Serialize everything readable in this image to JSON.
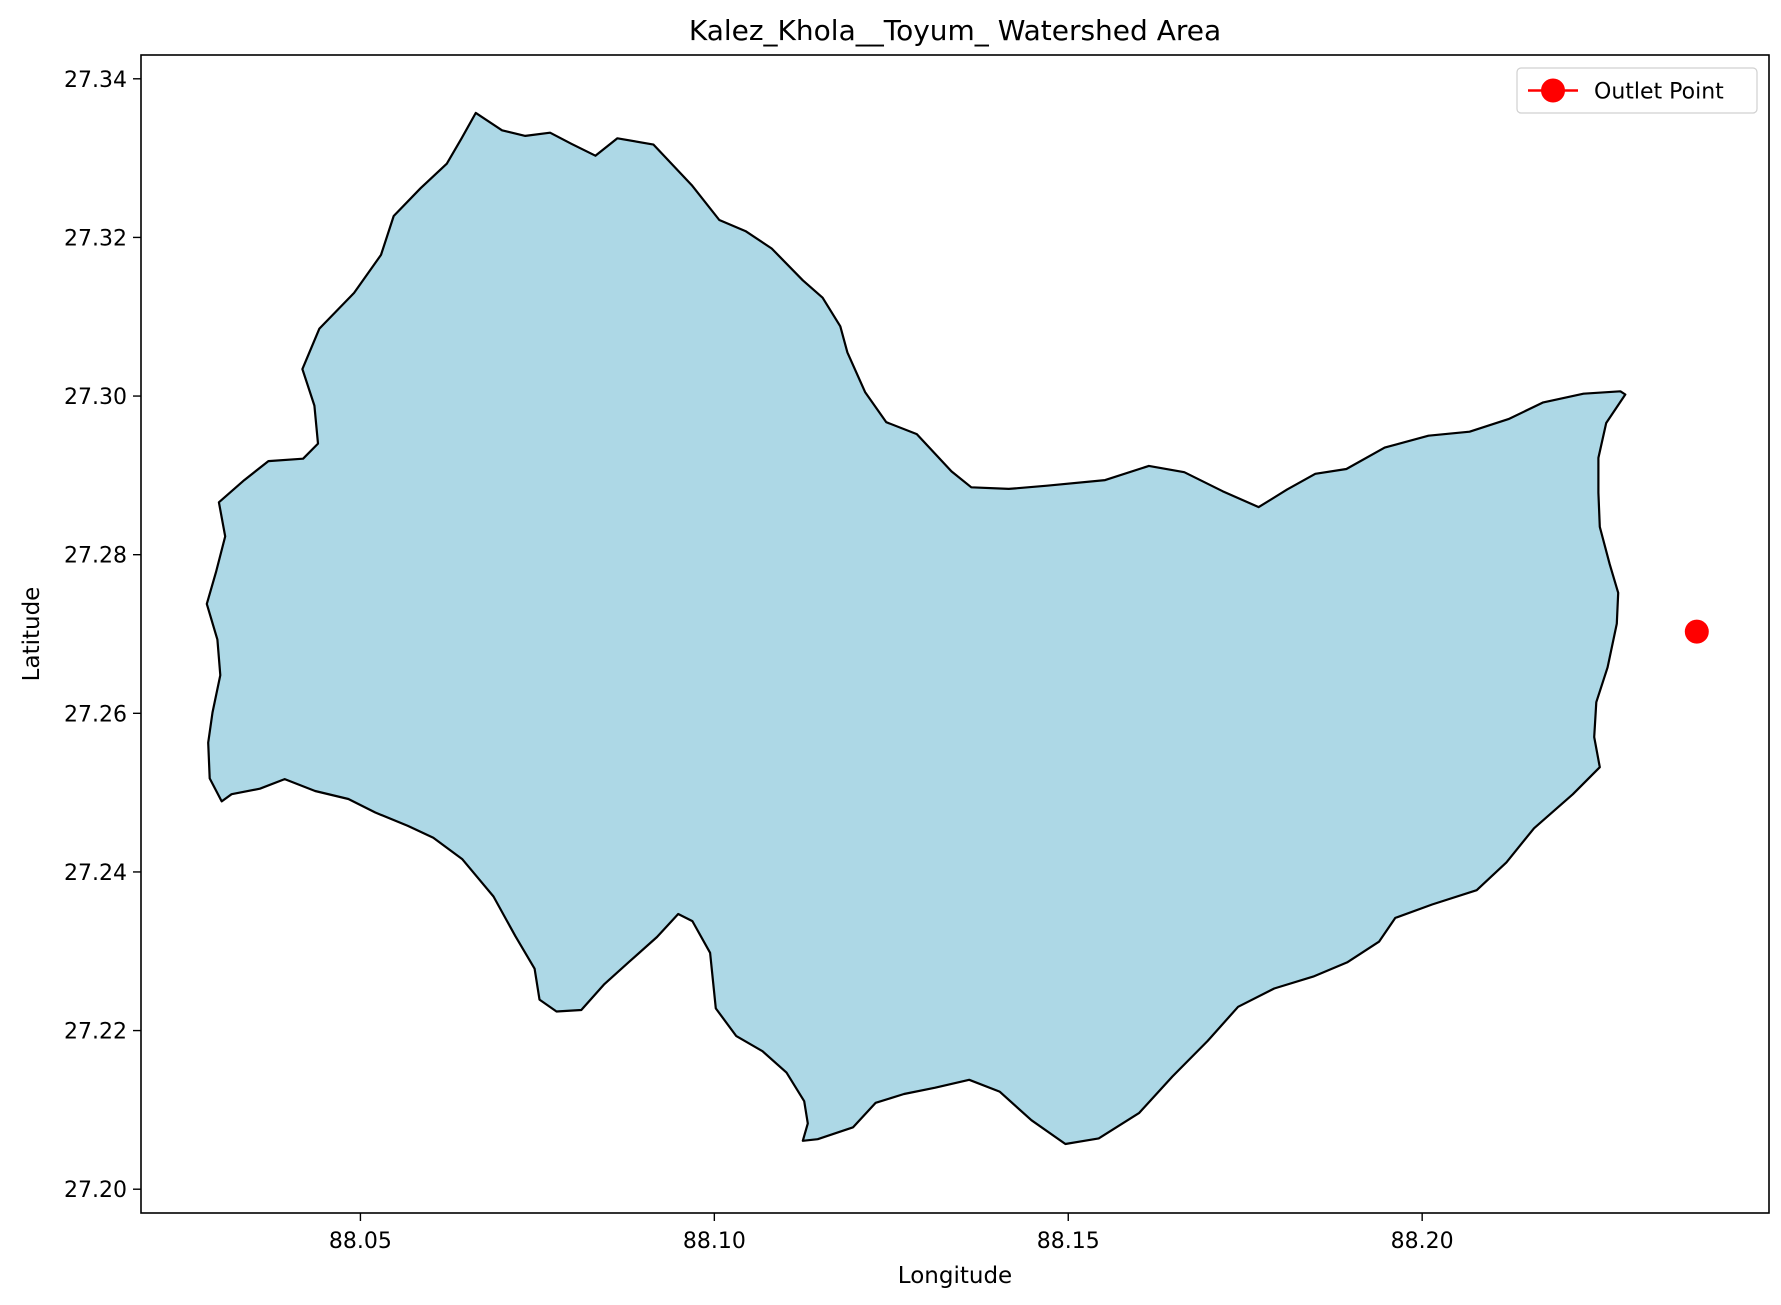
{
  "chart_data": {
    "type": "map",
    "title": "Kalez_Khola__Toyum_ Watershed Area",
    "xlabel": "Longitude",
    "ylabel": "Latitude",
    "xlim": [
      88.019,
      88.249
    ],
    "ylim": [
      27.197,
      27.343
    ],
    "x_ticks": [
      88.05,
      88.1,
      88.15,
      88.2
    ],
    "x_tick_labels": [
      "88.05",
      "88.10",
      "88.15",
      "88.20"
    ],
    "y_ticks": [
      27.2,
      27.22,
      27.24,
      27.26,
      27.28,
      27.3,
      27.32,
      27.34
    ],
    "y_tick_labels": [
      "27.20",
      "27.22",
      "27.24",
      "27.26",
      "27.28",
      "27.30",
      "27.32",
      "27.34"
    ],
    "legend": {
      "entries": [
        "Outlet Point"
      ],
      "placement": "top-right"
    },
    "colors": {
      "fill": "#add8e6",
      "edge": "#000000",
      "outlet": "#ff0000"
    },
    "outlet_point": {
      "lon": 88.2388,
      "lat": 27.2703
    },
    "watershed_boundary": [
      [
        88.0663,
        27.3357
      ],
      [
        88.07,
        27.3335
      ],
      [
        88.0733,
        27.3328
      ],
      [
        88.0768,
        27.3332
      ],
      [
        88.0798,
        27.3318
      ],
      [
        88.0832,
        27.3303
      ],
      [
        88.0863,
        27.3325
      ],
      [
        88.0914,
        27.3317
      ],
      [
        88.0968,
        27.3266
      ],
      [
        88.1007,
        27.3222
      ],
      [
        88.1044,
        27.3208
      ],
      [
        88.1081,
        27.3186
      ],
      [
        88.1125,
        27.3146
      ],
      [
        88.1153,
        27.3124
      ],
      [
        88.1178,
        27.3088
      ],
      [
        88.1188,
        27.3055
      ],
      [
        88.1213,
        27.3005
      ],
      [
        88.1243,
        27.2967
      ],
      [
        88.1286,
        27.2952
      ],
      [
        88.1335,
        27.2905
      ],
      [
        88.1363,
        27.2885
      ],
      [
        88.1416,
        27.2883
      ],
      [
        88.147,
        27.2887
      ],
      [
        88.1552,
        27.2894
      ],
      [
        88.1614,
        27.2912
      ],
      [
        88.1664,
        27.2904
      ],
      [
        88.1718,
        27.288
      ],
      [
        88.1769,
        27.286
      ],
      [
        88.1809,
        27.2882
      ],
      [
        88.1849,
        27.2902
      ],
      [
        88.1893,
        27.2908
      ],
      [
        88.1947,
        27.2935
      ],
      [
        88.2009,
        27.295
      ],
      [
        88.2067,
        27.2955
      ],
      [
        88.2122,
        27.2971
      ],
      [
        88.2171,
        27.2992
      ],
      [
        88.2228,
        27.3003
      ],
      [
        88.228,
        27.3006
      ],
      [
        88.2287,
        27.3002
      ],
      [
        88.226,
        27.2966
      ],
      [
        88.2249,
        27.2922
      ],
      [
        88.2249,
        27.2878
      ],
      [
        88.2251,
        27.2835
      ],
      [
        88.2265,
        27.2788
      ],
      [
        88.2277,
        27.2752
      ],
      [
        88.2275,
        27.2713
      ],
      [
        88.2262,
        27.2658
      ],
      [
        88.2246,
        27.2614
      ],
      [
        88.2243,
        27.257
      ],
      [
        88.2251,
        27.2532
      ],
      [
        88.2213,
        27.2498
      ],
      [
        88.2158,
        27.2455
      ],
      [
        88.2119,
        27.2412
      ],
      [
        88.2077,
        27.2377
      ],
      [
        88.2014,
        27.2359
      ],
      [
        88.1962,
        27.2342
      ],
      [
        88.1939,
        27.2312
      ],
      [
        88.1894,
        27.2286
      ],
      [
        88.1846,
        27.2268
      ],
      [
        88.1791,
        27.2253
      ],
      [
        88.174,
        27.223
      ],
      [
        88.1697,
        27.2187
      ],
      [
        88.1647,
        27.2142
      ],
      [
        88.16,
        27.2096
      ],
      [
        88.1543,
        27.2064
      ],
      [
        88.1496,
        27.2057
      ],
      [
        88.1448,
        27.2087
      ],
      [
        88.1403,
        27.2123
      ],
      [
        88.136,
        27.2138
      ],
      [
        88.1312,
        27.2128
      ],
      [
        88.1268,
        27.212
      ],
      [
        88.1228,
        27.2109
      ],
      [
        88.1196,
        27.2078
      ],
      [
        88.1146,
        27.2063
      ],
      [
        88.1125,
        27.2061
      ],
      [
        88.1132,
        27.2083
      ],
      [
        88.1127,
        27.2111
      ],
      [
        88.1102,
        27.2147
      ],
      [
        88.1068,
        27.2174
      ],
      [
        88.1031,
        27.2193
      ],
      [
        88.1002,
        27.2228
      ],
      [
        88.0994,
        27.2298
      ],
      [
        88.0969,
        27.2338
      ],
      [
        88.0949,
        27.2347
      ],
      [
        88.0919,
        27.2318
      ],
      [
        88.088,
        27.2287
      ],
      [
        88.0844,
        27.2258
      ],
      [
        88.0812,
        27.2226
      ],
      [
        88.0777,
        27.2224
      ],
      [
        88.0753,
        27.2239
      ],
      [
        88.0746,
        27.2278
      ],
      [
        88.0719,
        27.2319
      ],
      [
        88.0688,
        27.2369
      ],
      [
        88.0644,
        27.2416
      ],
      [
        88.0603,
        27.2443
      ],
      [
        88.0567,
        27.2458
      ],
      [
        88.0521,
        27.2475
      ],
      [
        88.0483,
        27.2492
      ],
      [
        88.0436,
        27.2502
      ],
      [
        88.0393,
        27.2517
      ],
      [
        88.0358,
        27.2505
      ],
      [
        88.0318,
        27.2498
      ],
      [
        88.0304,
        27.2489
      ],
      [
        88.0287,
        27.2518
      ],
      [
        88.0285,
        27.2563
      ],
      [
        88.0291,
        27.2601
      ],
      [
        88.0302,
        27.2648
      ],
      [
        88.0298,
        27.2693
      ],
      [
        88.0283,
        27.2738
      ],
      [
        88.0296,
        27.2778
      ],
      [
        88.0309,
        27.2823
      ],
      [
        88.03,
        27.2866
      ],
      [
        88.0336,
        27.2894
      ],
      [
        88.037,
        27.2918
      ],
      [
        88.0419,
        27.2921
      ],
      [
        88.044,
        27.294
      ],
      [
        88.0435,
        27.2988
      ],
      [
        88.0418,
        27.3034
      ],
      [
        88.0442,
        27.3085
      ],
      [
        88.0491,
        27.313
      ],
      [
        88.0529,
        27.3178
      ],
      [
        88.0547,
        27.3227
      ],
      [
        88.0585,
        27.3262
      ],
      [
        88.0622,
        27.3293
      ],
      [
        88.0643,
        27.3325
      ]
    ]
  }
}
